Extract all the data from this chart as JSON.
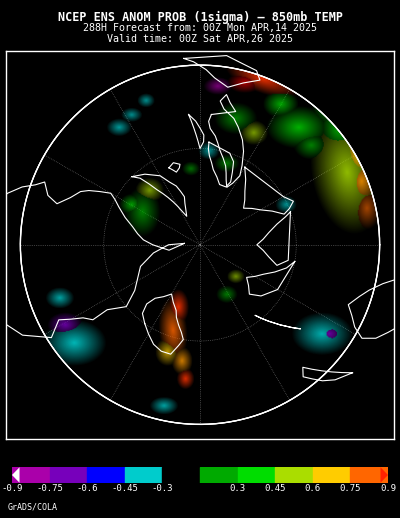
{
  "title_line1": "NCEP ENS ANOM PROB (1sigma) – 850mb TEMP",
  "title_line2": "288H Forecast from: 00Z Mon APR,14 2025",
  "title_line3": "Valid time: 00Z Sat APR,26 2025",
  "colorbar_colors": [
    "#aa00aa",
    "#7700bb",
    "#0000ff",
    "#00cccc",
    "#000000",
    "#00aa00",
    "#00dd00",
    "#aadd00",
    "#ffcc00",
    "#ff6600"
  ],
  "colorbar_tick_labels": [
    "-0.9",
    "-0.75",
    "-0.6",
    "-0.45",
    "-0.3",
    "0.3",
    "0.45",
    "0.6",
    "0.75",
    "0.9"
  ],
  "background_color": "#000000",
  "title_color": "#ffffff",
  "frame_color": "#ffffff",
  "watermark": "GrADS/COLA",
  "map_bg": "#000000",
  "grid_color": "#aaaaaa",
  "continent_color": "#ffffff"
}
